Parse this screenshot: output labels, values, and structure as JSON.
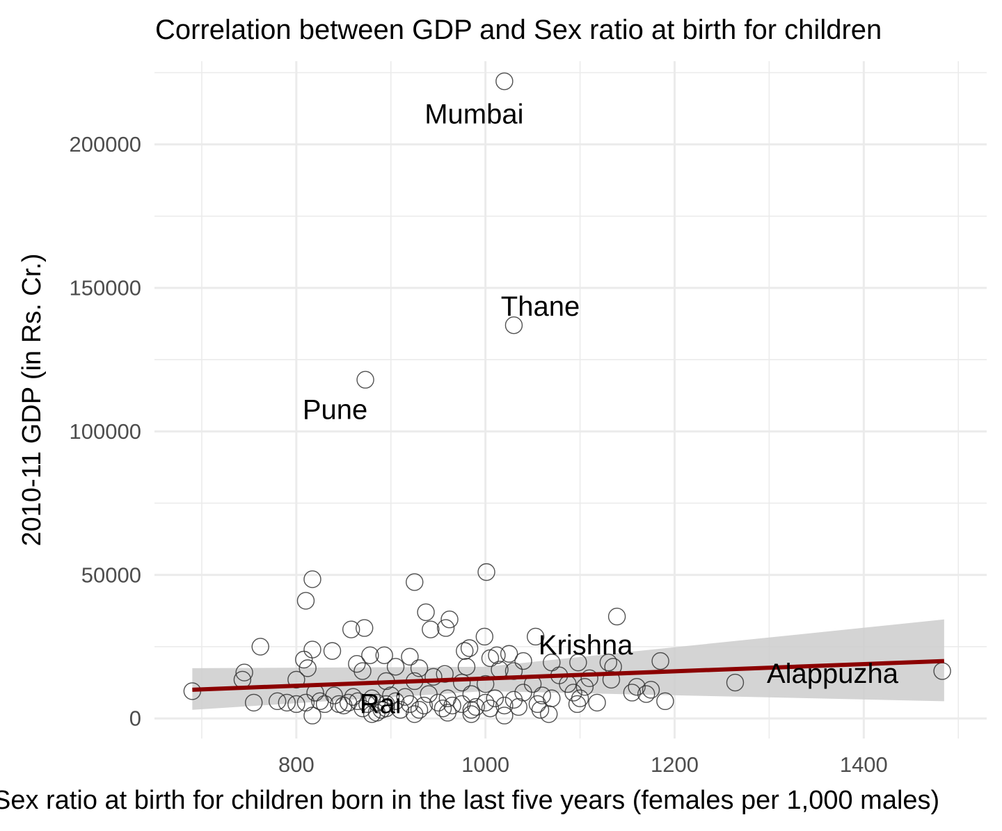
{
  "chart_data": {
    "type": "scatter",
    "title": "Correlation between GDP and Sex ratio at birth for children",
    "xlabel": "Sex ratio at birth for children born in the last five years (females per 1,000 males)",
    "ylabel": "2010-11 GDP (in Rs. Cr.)",
    "xlim": [
      650,
      1530
    ],
    "ylim": [
      -7000,
      229000
    ],
    "x_ticks": [
      800,
      1000,
      1200,
      1400
    ],
    "x_tick_labels": [
      "800",
      "1000",
      "1200",
      "1400"
    ],
    "y_ticks": [
      0,
      50000,
      100000,
      150000,
      200000
    ],
    "y_tick_labels": [
      "0",
      "50000",
      "100000",
      "150000",
      "200000"
    ],
    "grid": true,
    "legend": "none",
    "colors": {
      "point_stroke": "#333333",
      "trend_line": "#8b0000",
      "confidence_band": "#cccccc",
      "grid": "#ebebeb"
    },
    "trend_line": {
      "x": [
        690,
        1485
      ],
      "y": [
        10000,
        20000
      ]
    },
    "confidence_band": {
      "x": [
        690,
        1000,
        1485
      ],
      "lower": [
        3000,
        9500,
        6000
      ],
      "upper": [
        17500,
        18000,
        34500
      ]
    },
    "points": [
      {
        "x": 1020,
        "y": 222000
      },
      {
        "x": 1030,
        "y": 137000
      },
      {
        "x": 873,
        "y": 118000
      },
      {
        "x": 1001,
        "y": 51000
      },
      {
        "x": 817,
        "y": 48500
      },
      {
        "x": 925,
        "y": 47500
      },
      {
        "x": 810,
        "y": 41000
      },
      {
        "x": 937,
        "y": 37000
      },
      {
        "x": 1139,
        "y": 35500
      },
      {
        "x": 962,
        "y": 34500
      },
      {
        "x": 958,
        "y": 31500
      },
      {
        "x": 942,
        "y": 31000
      },
      {
        "x": 872,
        "y": 31500
      },
      {
        "x": 858,
        "y": 31000
      },
      {
        "x": 999,
        "y": 28500
      },
      {
        "x": 1053,
        "y": 28500
      },
      {
        "x": 762,
        "y": 25000
      },
      {
        "x": 817,
        "y": 24000
      },
      {
        "x": 838,
        "y": 23500
      },
      {
        "x": 983,
        "y": 24500
      },
      {
        "x": 978,
        "y": 23500
      },
      {
        "x": 1025,
        "y": 22500
      },
      {
        "x": 1012,
        "y": 22000
      },
      {
        "x": 878,
        "y": 22000
      },
      {
        "x": 893,
        "y": 22000
      },
      {
        "x": 920,
        "y": 21500
      },
      {
        "x": 1005,
        "y": 21000
      },
      {
        "x": 808,
        "y": 20500
      },
      {
        "x": 1040,
        "y": 20000
      },
      {
        "x": 1070,
        "y": 19500
      },
      {
        "x": 1098,
        "y": 19500
      },
      {
        "x": 1130,
        "y": 19500
      },
      {
        "x": 1185,
        "y": 20000
      },
      {
        "x": 1135,
        "y": 18000
      },
      {
        "x": 864,
        "y": 19000
      },
      {
        "x": 905,
        "y": 18000
      },
      {
        "x": 980,
        "y": 18000
      },
      {
        "x": 930,
        "y": 17500
      },
      {
        "x": 812,
        "y": 17500
      },
      {
        "x": 1015,
        "y": 17000
      },
      {
        "x": 1030,
        "y": 16500
      },
      {
        "x": 745,
        "y": 16000
      },
      {
        "x": 957,
        "y": 15500
      },
      {
        "x": 870,
        "y": 16500
      },
      {
        "x": 945,
        "y": 14500
      },
      {
        "x": 1078,
        "y": 15000
      },
      {
        "x": 1110,
        "y": 14000
      },
      {
        "x": 1133,
        "y": 13500
      },
      {
        "x": 743,
        "y": 13500
      },
      {
        "x": 800,
        "y": 13500
      },
      {
        "x": 895,
        "y": 13000
      },
      {
        "x": 925,
        "y": 13000
      },
      {
        "x": 975,
        "y": 12500
      },
      {
        "x": 1000,
        "y": 12000
      },
      {
        "x": 1050,
        "y": 12000
      },
      {
        "x": 1264,
        "y": 12500
      },
      {
        "x": 1483,
        "y": 16500
      },
      {
        "x": 1087,
        "y": 12000
      },
      {
        "x": 1105,
        "y": 11000
      },
      {
        "x": 1160,
        "y": 11000
      },
      {
        "x": 1175,
        "y": 10000
      },
      {
        "x": 1155,
        "y": 9000
      },
      {
        "x": 1170,
        "y": 8500
      },
      {
        "x": 1093,
        "y": 9000
      },
      {
        "x": 1040,
        "y": 9000
      },
      {
        "x": 1060,
        "y": 8000
      },
      {
        "x": 1070,
        "y": 7000
      },
      {
        "x": 1100,
        "y": 7000
      },
      {
        "x": 1118,
        "y": 5500
      },
      {
        "x": 1190,
        "y": 6000
      },
      {
        "x": 1097,
        "y": 5000
      },
      {
        "x": 820,
        "y": 9000
      },
      {
        "x": 840,
        "y": 8000
      },
      {
        "x": 860,
        "y": 7500
      },
      {
        "x": 880,
        "y": 7000
      },
      {
        "x": 900,
        "y": 8000
      },
      {
        "x": 915,
        "y": 7500
      },
      {
        "x": 940,
        "y": 8500
      },
      {
        "x": 960,
        "y": 7000
      },
      {
        "x": 985,
        "y": 8500
      },
      {
        "x": 1010,
        "y": 7000
      },
      {
        "x": 1030,
        "y": 6500
      },
      {
        "x": 755,
        "y": 5500
      },
      {
        "x": 780,
        "y": 6000
      },
      {
        "x": 790,
        "y": 5500
      },
      {
        "x": 800,
        "y": 5000
      },
      {
        "x": 810,
        "y": 5500
      },
      {
        "x": 825,
        "y": 6000
      },
      {
        "x": 845,
        "y": 5000
      },
      {
        "x": 855,
        "y": 5500
      },
      {
        "x": 865,
        "y": 6000
      },
      {
        "x": 875,
        "y": 5000
      },
      {
        "x": 885,
        "y": 5500
      },
      {
        "x": 895,
        "y": 5000
      },
      {
        "x": 905,
        "y": 6000
      },
      {
        "x": 920,
        "y": 5000
      },
      {
        "x": 935,
        "y": 4500
      },
      {
        "x": 950,
        "y": 5500
      },
      {
        "x": 965,
        "y": 4500
      },
      {
        "x": 975,
        "y": 5000
      },
      {
        "x": 990,
        "y": 4000
      },
      {
        "x": 1000,
        "y": 5500
      },
      {
        "x": 1020,
        "y": 4500
      },
      {
        "x": 1035,
        "y": 4000
      },
      {
        "x": 1055,
        "y": 5000
      },
      {
        "x": 870,
        "y": 3500
      },
      {
        "x": 890,
        "y": 3000
      },
      {
        "x": 910,
        "y": 3000
      },
      {
        "x": 930,
        "y": 3000
      },
      {
        "x": 955,
        "y": 3500
      },
      {
        "x": 985,
        "y": 3000
      },
      {
        "x": 1005,
        "y": 3500
      },
      {
        "x": 1058,
        "y": 3000
      },
      {
        "x": 880,
        "y": 1500
      },
      {
        "x": 925,
        "y": 1500
      },
      {
        "x": 960,
        "y": 2000
      },
      {
        "x": 985,
        "y": 1500
      },
      {
        "x": 1020,
        "y": 1000
      },
      {
        "x": 1067,
        "y": 1500
      },
      {
        "x": 817,
        "y": 1000
      },
      {
        "x": 690,
        "y": 9500
      },
      {
        "x": 885,
        "y": 2000
      },
      {
        "x": 895,
        "y": 3500
      },
      {
        "x": 850,
        "y": 4500
      },
      {
        "x": 830,
        "y": 5000
      }
    ],
    "annotations": [
      {
        "label": "Mumbai",
        "x": 988,
        "y": 210500
      },
      {
        "label": "Thane",
        "x": 1058,
        "y": 143500
      },
      {
        "label": "Pune",
        "x": 841,
        "y": 107500
      },
      {
        "label": "Krishna",
        "x": 1106,
        "y": 25500
      },
      {
        "label": "Alappuzha",
        "x": 1367,
        "y": 15500
      },
      {
        "label": "Rai",
        "x": 889,
        "y": 5000
      }
    ]
  }
}
